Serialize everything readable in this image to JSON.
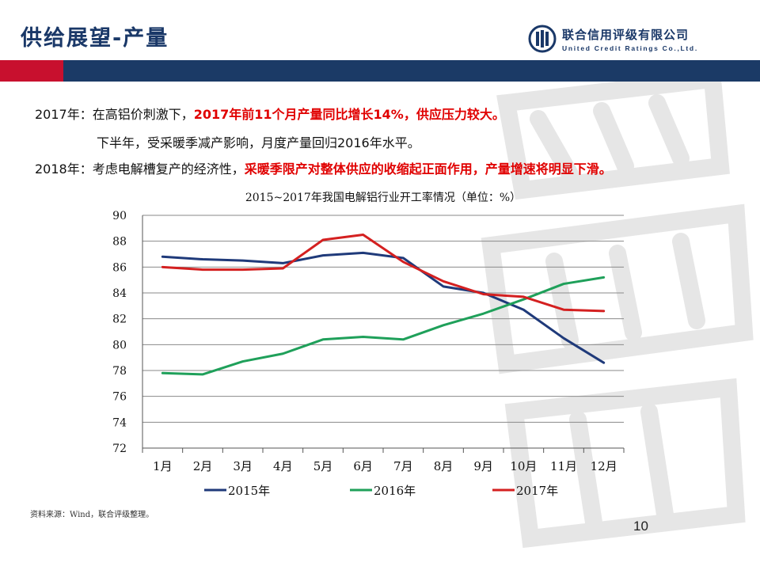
{
  "header": {
    "title": "供给展望-产量",
    "logo_cn": "联合信用评级有限公司",
    "logo_en": "United Credit Ratings Co.,Ltd."
  },
  "bullets": [
    {
      "prefix": "2017年：在高铝价刺激下，",
      "highlight": "2017年前11个月产量同比增长14%，供应压力较大。",
      "suffix": ""
    },
    {
      "prefix": "下半年，受采暖季减产影响，月度产量回归2016年水平。",
      "highlight": "",
      "suffix": ""
    },
    {
      "prefix": "2018年：考虑电解槽复产的经济性，",
      "highlight": "采暖季限产对整体供应的收缩起正面作用，产量增速将明显下滑。",
      "suffix": ""
    }
  ],
  "chart_data": {
    "type": "line",
    "title": "2015~2017年我国电解铝行业开工率情况（单位：%）",
    "categories": [
      "1月",
      "2月",
      "3月",
      "4月",
      "5月",
      "6月",
      "7月",
      "8月",
      "9月",
      "10月",
      "11月",
      "12月"
    ],
    "ylim": [
      72,
      90
    ],
    "yticks": [
      72,
      74,
      76,
      78,
      80,
      82,
      84,
      86,
      88,
      90
    ],
    "grid": true,
    "legend_position": "bottom",
    "series": [
      {
        "name": "2015年",
        "color": "#1f3a7a",
        "values": [
          86.8,
          86.6,
          86.5,
          86.3,
          86.9,
          87.1,
          86.7,
          84.5,
          84.0,
          82.7,
          80.5,
          78.6
        ]
      },
      {
        "name": "2016年",
        "color": "#1fa05a",
        "values": [
          77.8,
          77.7,
          78.7,
          79.3,
          80.4,
          80.6,
          80.4,
          81.5,
          82.4,
          83.5,
          84.7,
          85.2
        ]
      },
      {
        "name": "2017年",
        "color": "#d42020",
        "values": [
          86.0,
          85.8,
          85.8,
          85.9,
          88.1,
          88.5,
          86.4,
          84.9,
          83.9,
          83.7,
          82.7,
          82.6
        ]
      }
    ]
  },
  "footer": {
    "source": "资料来源：Wind，联合评级整理。",
    "page": "10"
  }
}
